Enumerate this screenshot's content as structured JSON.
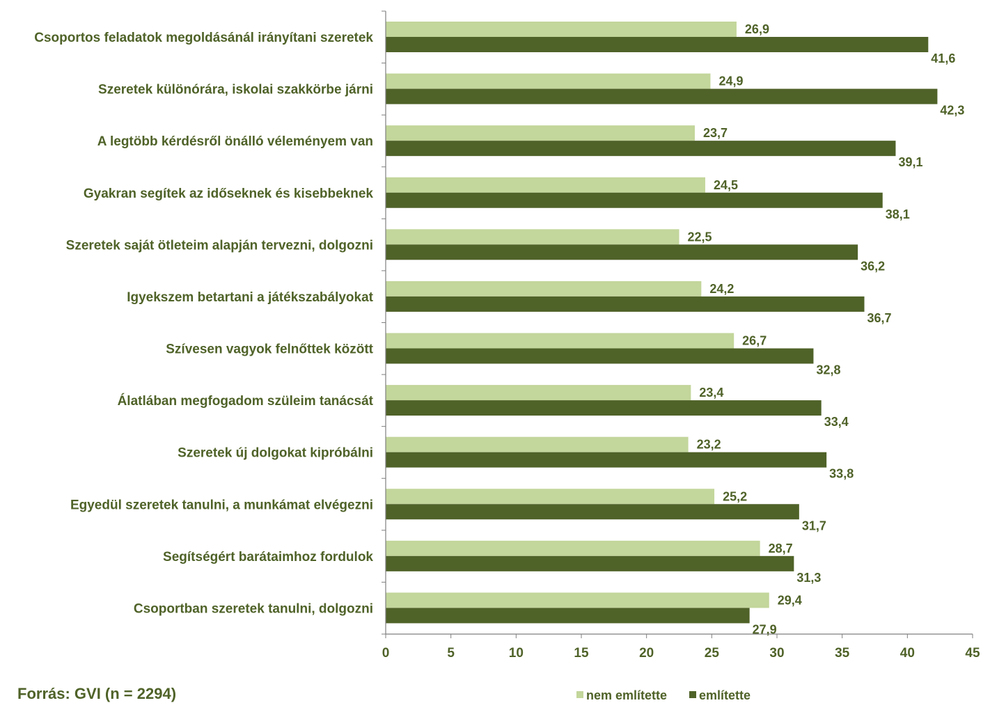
{
  "chart_data": {
    "type": "bar",
    "orientation": "horizontal",
    "categories": [
      "Csoportos feladatok megoldásánál irányítani szeretek",
      "Szeretek különórára, iskolai szakkörbe járni",
      "A legtöbb kérdésről önálló véleményem van",
      "Gyakran segítek az időseknek és kisebbeknek",
      "Szeretek saját ötleteim alapján tervezni, dolgozni",
      "Igyekszem betartani a játékszabályokat",
      "Szívesen vagyok felnőttek között",
      "Álatlában megfogadom szüleim tanácsát",
      "Szeretek új dolgokat kipróbálni",
      "Egyedül szeretek tanulni, a munkámat elvégezni",
      "Segítségért barátaimhoz fordulok",
      "Csoportban szeretek tanulni, dolgozni"
    ],
    "series": [
      {
        "name": "nem említette",
        "color": "#c3d69b",
        "values": [
          26.9,
          24.9,
          23.7,
          24.5,
          22.5,
          24.2,
          26.7,
          23.4,
          23.2,
          25.2,
          28.7,
          29.4
        ],
        "labels": [
          "26,9",
          "24,9",
          "23,7",
          "24,5",
          "22,5",
          "24,2",
          "26,7",
          "23,4",
          "23,2",
          "25,2",
          "28,7",
          "29,4"
        ]
      },
      {
        "name": "említette",
        "color": "#4f6228",
        "values": [
          41.6,
          42.3,
          39.1,
          38.1,
          36.2,
          36.7,
          32.8,
          33.4,
          33.8,
          31.7,
          31.3,
          27.9
        ],
        "labels": [
          "41,6",
          "42,3",
          "39,1",
          "38,1",
          "36,2",
          "36,7",
          "32,8",
          "33,4",
          "33,8",
          "31,7",
          "31,3",
          "27,9"
        ]
      }
    ],
    "xlim": [
      0,
      45
    ],
    "xticks": [
      "0",
      "5",
      "10",
      "15",
      "20",
      "25",
      "30",
      "35",
      "40",
      "45"
    ],
    "grid": false,
    "legend_position": "bottom-right",
    "text_color": "#4f6228",
    "axis_color": "#7f7f7f"
  },
  "source_note": "Forrás: GVI (n = 2294)"
}
